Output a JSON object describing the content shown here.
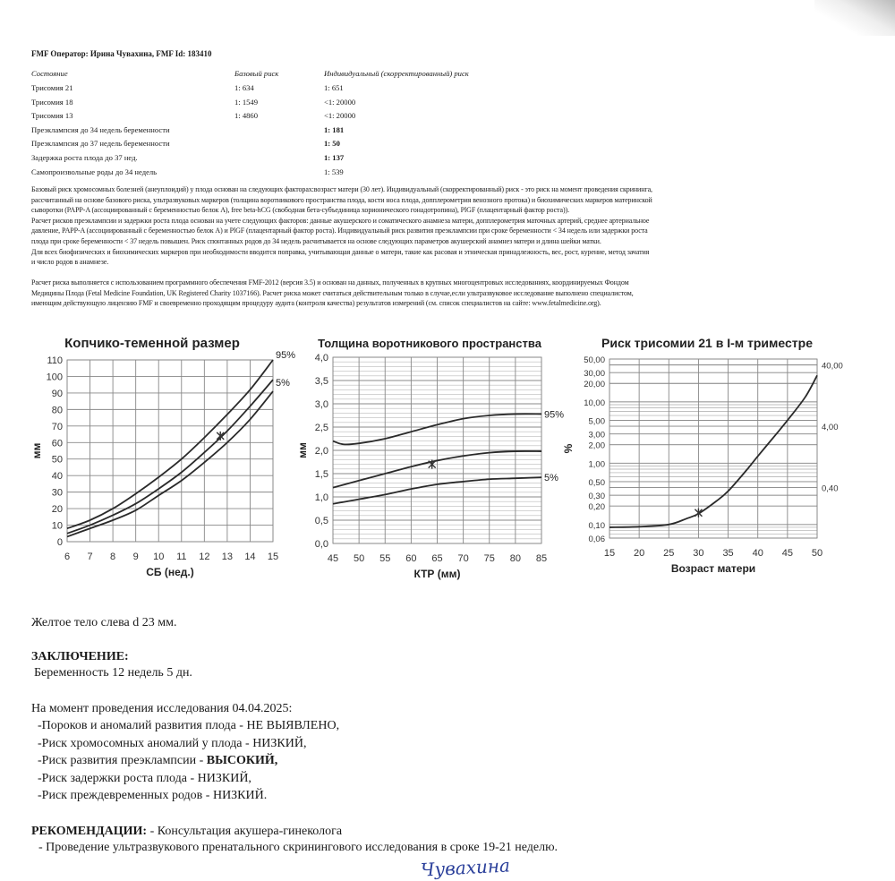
{
  "header": {
    "operator": "FMF Оператор: Ирина Чувахина, FMF Id: 183410"
  },
  "risk_table": {
    "columns": [
      "Состояние",
      "Базовый риск",
      "Индивидуальный (скорректированный) риск"
    ],
    "rows": [
      {
        "condition": "Трисомия 21",
        "base": "1: 634",
        "individual": "1: 651",
        "bold": false
      },
      {
        "condition": "Трисомия 18",
        "base": "1: 1549",
        "individual": "<1: 20000",
        "bold": false
      },
      {
        "condition": "Трисомия 13",
        "base": "1: 4860",
        "individual": "<1: 20000",
        "bold": false
      },
      {
        "condition": "Преэклампсия до 34 недель беременности",
        "base": "",
        "individual": "1: 181",
        "bold": true
      },
      {
        "condition": "Преэклампсия до 37 недель беременности",
        "base": "",
        "individual": "1: 50",
        "bold": true
      },
      {
        "condition": "Задержка роста плода до 37 нед.",
        "base": "",
        "individual": "1: 137",
        "bold": true
      },
      {
        "condition": "Самопроизвольные роды до 34 недель",
        "base": "",
        "individual": "1: 539",
        "bold": false
      }
    ]
  },
  "explanation": [
    "Базовый риск хромосомных болезней (анеуплоидий) у плода основан на следующих факторах:возраст матери (30 лет). Индивидуальный (скорректированный) риск - это риск на момент проведения скрининга,",
    "рассчитанный на основе базового риска, ультразвуковых маркеров (толщина воротникового пространства плода, кости носа плода, допплерометрия венозного протока) и биохимических маркеров материнской",
    "сыворотки (PAPP-A (ассоциированный с беременностью белок А), free beta-hCG (свободная бета-субъединица хорионического гонадотропина), PlGF (плацентарный фактор роста)).",
    "Расчет рисков преэклампсии и задержки роста плода основан на учете следующих факторов: данные акушерского и соматического анамнеза матери, допплерометрия маточных артерий, среднее артериальное",
    "давление, PAPP-A (ассоциированный с беременностью белок А) и PlGF (плацентарный фактор роста). Индивидуальный риск развития преэклампсии при сроке беременности < 34 недель или задержки роста",
    "плода при сроке беременности < 37 недель повышен. Риск спонтанных родов до 34 недель расчитывается на основе следующих параметров акушерский анамнез матери и длина шейки матки.",
    "Для всех биофизических и биохимических маркеров при необходимости вводится поправка, учитывающая данные о матери, такие как расовая и этническая принадлежность, вес, рост, курение, метод зачатия",
    "и число родов в анамнезе."
  ],
  "software_note": [
    "Расчет риска выполняется с использованием программного обеспечения FMF-2012 (версия 3.5) и основан на данных, полученных в крупных многоцентровых исследованиях, координируемых Фондом",
    "Медицины Плода (Fetal Medicine Foundation, UK Registered Charity 1037166). Расчет риска может считаться действительным только в случае,если ультразвуковое исследование выполнено специалистом,",
    "имеющим действующую лицензию FMF и своевременно проходящим процедуру аудита (контроля качества) результатов измерений (см. список специалистов на сайте: www.fetalmedicine.org)."
  ],
  "chart_data": [
    {
      "type": "line",
      "title": "Копчико-теменной размер",
      "xlabel": "СБ (нед.)",
      "ylabel": "мм",
      "xlim": [
        6,
        15
      ],
      "ylim": [
        0,
        110
      ],
      "yscale": "linear",
      "grid": true,
      "xticks": [
        "6",
        "7",
        "8",
        "9",
        "10",
        "11",
        "12",
        "13",
        "14",
        "15"
      ],
      "yticks": [
        "0",
        "10",
        "20",
        "30",
        "40",
        "50",
        "60",
        "70",
        "80",
        "90",
        "100",
        "110"
      ],
      "x": [
        6,
        7,
        8,
        9,
        10,
        11,
        12,
        13,
        14,
        15
      ],
      "series": [
        {
          "name": "95%",
          "values": [
            8,
            13,
            20,
            29,
            39,
            50,
            63,
            77,
            92,
            110
          ]
        },
        {
          "values": [
            5,
            10,
            16,
            23,
            32,
            42,
            54,
            67,
            82,
            98
          ]
        },
        {
          "name": "5%",
          "values": [
            3,
            8,
            13,
            19,
            28,
            37,
            48,
            60,
            74,
            91
          ]
        }
      ],
      "marker": {
        "x": 12.7,
        "y": 64
      }
    },
    {
      "type": "line",
      "title": "Толщина воротникового пространства",
      "xlabel": "КТР (мм)",
      "ylabel": "мм",
      "xlim": [
        45,
        85
      ],
      "ylim": [
        0,
        4
      ],
      "yscale": "linear",
      "grid": true,
      "xticks": [
        "45",
        "50",
        "55",
        "60",
        "65",
        "70",
        "75",
        "80",
        "85"
      ],
      "yticks": [
        "0,0",
        "0,5",
        "1,0",
        "1,5",
        "2,0",
        "2,5",
        "3,0",
        "3,5",
        "4,0"
      ],
      "x": [
        45,
        47,
        50,
        55,
        60,
        65,
        70,
        75,
        80,
        85
      ],
      "series": [
        {
          "name": "95%",
          "values": [
            2.2,
            2.13,
            2.15,
            2.25,
            2.4,
            2.55,
            2.68,
            2.75,
            2.78,
            2.78
          ]
        },
        {
          "values": [
            1.2,
            1.26,
            1.35,
            1.5,
            1.65,
            1.78,
            1.88,
            1.95,
            1.98,
            1.98
          ]
        },
        {
          "name": "5%",
          "values": [
            0.85,
            0.89,
            0.95,
            1.05,
            1.17,
            1.27,
            1.33,
            1.38,
            1.4,
            1.42
          ]
        }
      ],
      "marker": {
        "x": 64,
        "y": 1.7
      }
    },
    {
      "type": "line",
      "title": "Риск трисомии 21 в I-м триместре",
      "xlabel": "Возраст матери",
      "ylabel": "%",
      "xlim": [
        15,
        50
      ],
      "ylim": [
        0.06,
        50
      ],
      "yscale": "log",
      "grid": true,
      "xticks": [
        "15",
        "20",
        "25",
        "30",
        "35",
        "40",
        "45",
        "50"
      ],
      "yticks": [
        "0,06",
        "0,10",
        "0,20",
        "0,30",
        "0,40",
        "0,50",
        "1,00",
        "2,00",
        "3,00",
        "4,00",
        "5,00",
        "10,00",
        "20,00",
        "30,00",
        "40,00",
        "50,00"
      ],
      "x": [
        15,
        20,
        25,
        28,
        30,
        33,
        35,
        38,
        40,
        43,
        45,
        48,
        50
      ],
      "series": [
        {
          "values": [
            0.09,
            0.092,
            0.1,
            0.125,
            0.15,
            0.24,
            0.35,
            0.75,
            1.3,
            2.9,
            5,
            12,
            27
          ]
        }
      ],
      "marker": {
        "x": 30,
        "y": 0.155
      }
    }
  ],
  "findings": {
    "corpus_luteum": "Желтое тело слева d 23 мм."
  },
  "conclusion": {
    "heading": "ЗАКЛЮЧЕНИЕ:",
    "pregnancy": "Беременность 12 недель 5 дн.",
    "exam_date_line": "На момент проведения исследования 04.04.2025:",
    "items": [
      {
        "text": "-Пороков и аномалий развития плода - НЕ ВЫЯВЛЕНО,",
        "emph": ""
      },
      {
        "text": "-Риск хромосомных аномалий у плода - НИЗКИЙ,",
        "emph": ""
      },
      {
        "text": "-Риск развития преэклампсии - ",
        "emph": "ВЫСОКИЙ,"
      },
      {
        "text": "-Риск задержки роста плода - НИЗКИЙ,",
        "emph": ""
      },
      {
        "text": "-Риск преждевременных родов - НИЗКИЙ.",
        "emph": ""
      }
    ]
  },
  "recommendations": {
    "heading": "РЕКОМЕНДАЦИИ:",
    "first": " - Консультация акушера-гинеколога",
    "second": "- Проведение ультразвукового пренатального скринингового исследования в сроке 19-21 неделю."
  },
  "signature": "Чувахина",
  "colors": {
    "ink": "#1a1a1a",
    "grid": "#9a9a9a",
    "signature": "#2a3f9a"
  }
}
